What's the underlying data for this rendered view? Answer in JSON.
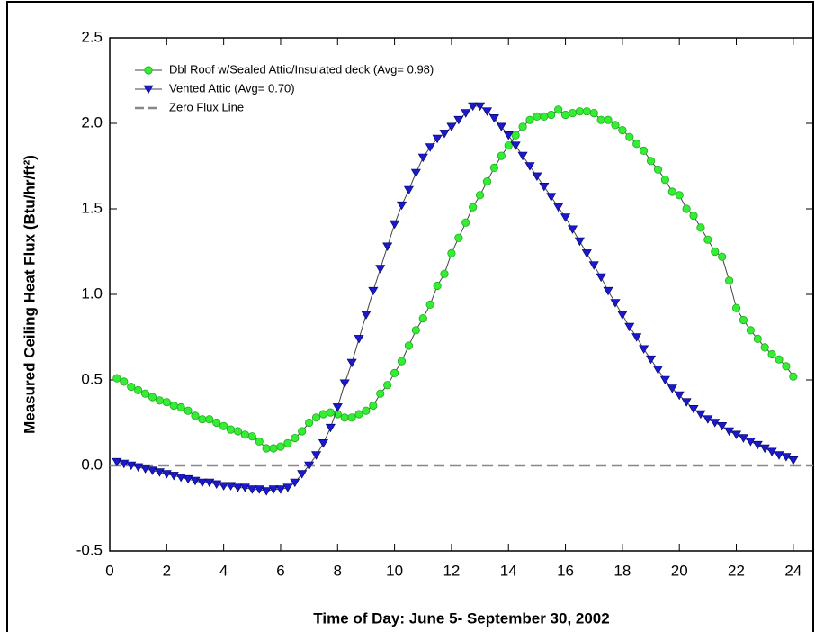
{
  "chart_data": {
    "type": "line",
    "xlabel": "Time of Day: June 5- September 30, 2002",
    "ylabel": "Measured Ceiling Heat Flux (Btu/hr/ft²)",
    "xlim": [
      0,
      24.7
    ],
    "ylim": [
      -0.5,
      2.5
    ],
    "xticks": [
      0,
      2,
      4,
      6,
      8,
      10,
      12,
      14,
      16,
      18,
      20,
      22,
      24
    ],
    "yticks": [
      {
        "value": -0.5,
        "label": "-0.5"
      },
      {
        "value": 0,
        "label": "0.0"
      },
      {
        "value": 0.5,
        "label": "0.5"
      },
      {
        "value": 1,
        "label": "1.0"
      },
      {
        "value": 1.5,
        "label": "1.5"
      },
      {
        "value": 2,
        "label": "2.0"
      },
      {
        "value": 2.5,
        "label": "2.5"
      }
    ],
    "legend": "upper left",
    "x": [
      0.25,
      0.5,
      0.75,
      1,
      1.25,
      1.5,
      1.75,
      2,
      2.25,
      2.5,
      2.75,
      3,
      3.25,
      3.5,
      3.75,
      4,
      4.25,
      4.5,
      4.75,
      5,
      5.25,
      5.5,
      5.75,
      6,
      6.25,
      6.5,
      6.75,
      7,
      7.25,
      7.5,
      7.75,
      8,
      8.25,
      8.5,
      8.75,
      9,
      9.25,
      9.5,
      9.75,
      10,
      10.25,
      10.5,
      10.75,
      11,
      11.25,
      11.5,
      11.75,
      12,
      12.25,
      12.5,
      12.75,
      13,
      13.25,
      13.5,
      13.75,
      14,
      14.25,
      14.5,
      14.75,
      15,
      15.25,
      15.5,
      15.75,
      16,
      16.25,
      16.5,
      16.75,
      17,
      17.25,
      17.5,
      17.75,
      18,
      18.25,
      18.5,
      18.75,
      19,
      19.25,
      19.5,
      19.75,
      20,
      20.25,
      20.5,
      20.75,
      21,
      21.25,
      21.5,
      21.75,
      22,
      22.25,
      22.5,
      22.75,
      23,
      23.25,
      23.5,
      23.75,
      24
    ],
    "series": [
      {
        "name": "Dbl Roof w/Sealed Attic/Insulated deck (Avg= 0.98)",
        "color": "#33ee33",
        "marker": "circle",
        "values": [
          0.51,
          0.49,
          0.46,
          0.44,
          0.42,
          0.4,
          0.38,
          0.37,
          0.35,
          0.34,
          0.32,
          0.29,
          0.27,
          0.27,
          0.25,
          0.23,
          0.21,
          0.2,
          0.18,
          0.17,
          0.14,
          0.1,
          0.1,
          0.11,
          0.13,
          0.16,
          0.2,
          0.25,
          0.28,
          0.3,
          0.31,
          0.3,
          0.28,
          0.28,
          0.3,
          0.32,
          0.35,
          0.42,
          0.47,
          0.54,
          0.61,
          0.7,
          0.79,
          0.86,
          0.94,
          1.05,
          1.12,
          1.24,
          1.33,
          1.42,
          1.51,
          1.58,
          1.66,
          1.74,
          1.81,
          1.87,
          1.93,
          1.98,
          2.02,
          2.04,
          2.04,
          2.05,
          2.08,
          2.05,
          2.06,
          2.07,
          2.07,
          2.06,
          2.02,
          2.02,
          1.99,
          1.96,
          1.92,
          1.88,
          1.84,
          1.78,
          1.73,
          1.67,
          1.6,
          1.58,
          1.5,
          1.46,
          1.39,
          1.32,
          1.25,
          1.22,
          1.08,
          0.92,
          0.85,
          0.79,
          0.74,
          0.69,
          0.65,
          0.62,
          0.58,
          0.52
        ]
      },
      {
        "name": "Vented Attic (Avg= 0.70)",
        "color": "#1a1acc",
        "marker": "triangle-down",
        "values": [
          0.02,
          0.01,
          0.0,
          -0.01,
          -0.02,
          -0.03,
          -0.04,
          -0.05,
          -0.06,
          -0.07,
          -0.08,
          -0.09,
          -0.1,
          -0.1,
          -0.11,
          -0.12,
          -0.12,
          -0.13,
          -0.13,
          -0.14,
          -0.14,
          -0.15,
          -0.14,
          -0.14,
          -0.13,
          -0.1,
          -0.05,
          0.0,
          0.06,
          0.13,
          0.22,
          0.34,
          0.48,
          0.6,
          0.74,
          0.88,
          1.02,
          1.15,
          1.28,
          1.41,
          1.52,
          1.61,
          1.71,
          1.8,
          1.86,
          1.91,
          1.94,
          1.98,
          2.02,
          2.06,
          2.1,
          2.1,
          2.07,
          2.03,
          1.98,
          1.93,
          1.87,
          1.81,
          1.75,
          1.69,
          1.63,
          1.57,
          1.51,
          1.45,
          1.38,
          1.31,
          1.24,
          1.17,
          1.1,
          1.02,
          0.95,
          0.88,
          0.81,
          0.75,
          0.68,
          0.62,
          0.56,
          0.5,
          0.45,
          0.41,
          0.37,
          0.33,
          0.3,
          0.27,
          0.25,
          0.23,
          0.2,
          0.18,
          0.16,
          0.14,
          0.12,
          0.1,
          0.08,
          0.06,
          0.05,
          0.03
        ]
      }
    ],
    "reference_line": {
      "name": "Zero Flux Line",
      "y": 0,
      "color": "#888888"
    }
  }
}
